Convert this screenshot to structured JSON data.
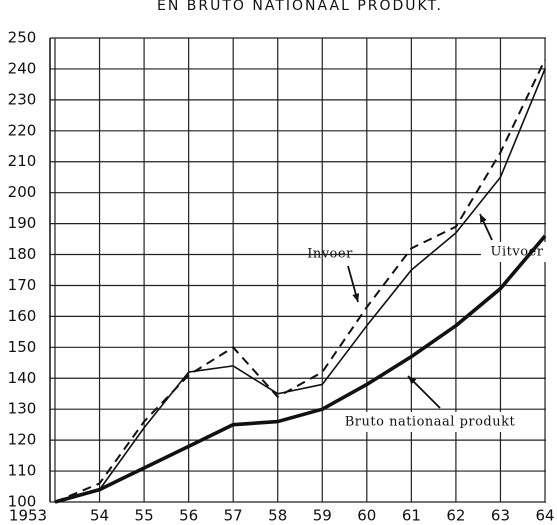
{
  "chart_data": {
    "type": "line",
    "title": "EN BRUTO NATIONAAL PRODUKT.",
    "categories": [
      "1953",
      "54",
      "55",
      "56",
      "57",
      "58",
      "59",
      "60",
      "61",
      "62",
      "63",
      "64"
    ],
    "series": [
      {
        "name": "Invoer",
        "color": "#111111",
        "style": "dashed",
        "values": [
          100,
          106,
          126,
          141,
          150,
          134,
          142,
          163,
          182,
          189,
          213,
          243
        ]
      },
      {
        "name": "Uitvoer",
        "color": "#111111",
        "style": "thin",
        "values": [
          100,
          104,
          124,
          142,
          144,
          135,
          138,
          157,
          175,
          187,
          205,
          240
        ]
      },
      {
        "name": "Bruto nationaal produkt",
        "color": "#111111",
        "style": "thick",
        "values": [
          100,
          104,
          111,
          118,
          125,
          126,
          130,
          138,
          147,
          157,
          169,
          186
        ]
      }
    ],
    "ylim": [
      100,
      250
    ],
    "yticks": [
      100,
      110,
      120,
      130,
      140,
      150,
      160,
      170,
      180,
      190,
      200,
      210,
      220,
      230,
      240,
      250
    ],
    "grid": true
  }
}
